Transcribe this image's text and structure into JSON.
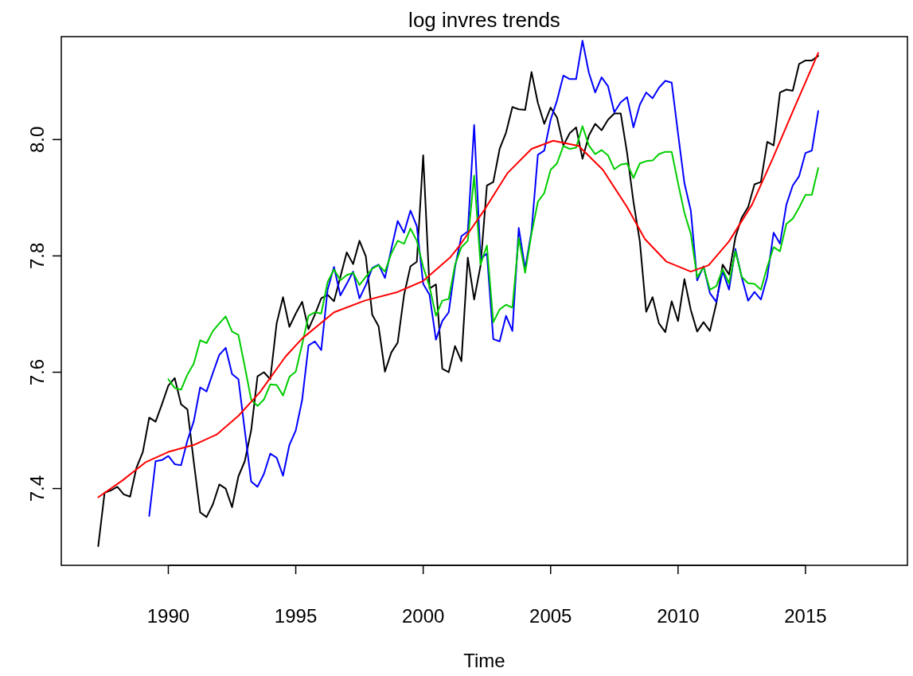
{
  "chart_data": {
    "type": "line",
    "title": "log invres trends",
    "xlabel": "Time",
    "xlim": [
      1985.8,
      2019
    ],
    "xticks": [
      1990,
      1995,
      2000,
      2005,
      2010,
      2015
    ],
    "ylim": [
      7.268,
      8.177
    ],
    "yticks": [
      {
        "value": 7.4,
        "label": "7.4"
      },
      {
        "value": 7.6,
        "label": "7.6"
      },
      {
        "value": 7.8,
        "label": "7.8"
      },
      {
        "value": 8.0,
        "label": "8.0"
      }
    ],
    "x": [
      1987.25,
      1987.5,
      1987.75,
      1988,
      1988.25,
      1988.5,
      1988.75,
      1989,
      1989.25,
      1989.5,
      1989.75,
      1990,
      1990.25,
      1990.5,
      1990.75,
      1991,
      1991.25,
      1991.5,
      1991.75,
      1992,
      1992.25,
      1992.5,
      1992.75,
      1993,
      1993.25,
      1993.5,
      1993.75,
      1994,
      1994.25,
      1994.5,
      1994.75,
      1995,
      1995.25,
      1995.5,
      1995.75,
      1996,
      1996.25,
      1996.5,
      1996.75,
      1997,
      1997.25,
      1997.5,
      1997.75,
      1998,
      1998.25,
      1998.5,
      1998.75,
      1999,
      1999.25,
      1999.5,
      1999.75,
      2000,
      2000.25,
      2000.5,
      2000.75,
      2001,
      2001.25,
      2001.5,
      2001.75,
      2002,
      2002.25,
      2002.5,
      2002.75,
      2003,
      2003.25,
      2003.5,
      2003.75,
      2004,
      2004.25,
      2004.5,
      2004.75,
      2005,
      2005.25,
      2005.5,
      2005.75,
      2006,
      2006.25,
      2006.5,
      2006.75,
      2007,
      2007.25,
      2007.5,
      2007.75,
      2008,
      2008.25,
      2008.5,
      2008.75,
      2009,
      2009.25,
      2009.5,
      2009.75,
      2010,
      2010.25,
      2010.5,
      2010.75,
      2011,
      2011.25,
      2011.5,
      2011.75,
      2012,
      2012.25,
      2012.5,
      2012.75,
      2013,
      2013.25,
      2013.5,
      2013.75,
      2014,
      2014.25,
      2014.5,
      2014.75,
      2015,
      2015.25,
      2015.5
    ],
    "series": [
      {
        "color": "#000000",
        "values": [
          7.301,
          7.393,
          7.397,
          7.403,
          7.39,
          7.386,
          7.436,
          7.463,
          7.522,
          7.515,
          7.545,
          7.577,
          7.59,
          7.545,
          7.536,
          7.445,
          7.359,
          7.351,
          7.373,
          7.407,
          7.4,
          7.368,
          7.421,
          7.447,
          7.5,
          7.593,
          7.6,
          7.588,
          7.684,
          7.729,
          7.678,
          7.701,
          7.721,
          7.674,
          7.699,
          7.727,
          7.733,
          7.722,
          7.764,
          7.806,
          7.786,
          7.826,
          7.799,
          7.699,
          7.679,
          7.601,
          7.634,
          7.651,
          7.733,
          7.782,
          7.79,
          7.973,
          7.744,
          7.751,
          7.606,
          7.6,
          7.645,
          7.619,
          7.797,
          7.725,
          7.783,
          7.921,
          7.927,
          7.984,
          8.012,
          8.056,
          8.052,
          8.051,
          8.116,
          8.063,
          8.027,
          8.055,
          8.038,
          7.99,
          8.011,
          8.021,
          7.967,
          8.007,
          8.027,
          8.016,
          8.034,
          8.045,
          8.045,
          7.977,
          7.893,
          7.825,
          7.704,
          7.729,
          7.684,
          7.669,
          7.722,
          7.688,
          7.76,
          7.707,
          7.67,
          7.686,
          7.671,
          7.718,
          7.785,
          7.768,
          7.832,
          7.866,
          7.884,
          7.923,
          7.927,
          7.996,
          7.99,
          8.081,
          8.086,
          8.084,
          8.13,
          8.136,
          8.136,
          8.144
        ]
      },
      {
        "color": "#0000ff",
        "values": [
          null,
          null,
          null,
          null,
          null,
          null,
          null,
          null,
          7.353,
          7.447,
          7.449,
          7.456,
          7.442,
          7.44,
          7.483,
          7.516,
          7.574,
          7.567,
          7.599,
          7.63,
          7.642,
          7.597,
          7.588,
          7.5,
          7.412,
          7.403,
          7.425,
          7.46,
          7.453,
          7.422,
          7.475,
          7.5,
          7.552,
          7.646,
          7.653,
          7.638,
          7.742,
          7.781,
          7.732,
          7.752,
          7.773,
          7.727,
          7.75,
          7.779,
          7.785,
          7.762,
          7.812,
          7.86,
          7.84,
          7.878,
          7.851,
          7.752,
          7.733,
          7.656,
          7.688,
          7.703,
          7.781,
          7.834,
          7.842,
          8.025,
          7.795,
          7.804,
          7.657,
          7.653,
          7.697,
          7.671,
          7.848,
          7.778,
          7.842,
          7.974,
          7.981,
          8.034,
          8.067,
          8.11,
          8.104,
          8.104,
          8.17,
          8.115,
          8.081,
          8.107,
          8.092,
          8.047,
          8.064,
          8.073,
          8.021,
          8.06,
          8.081,
          8.071,
          8.089,
          8.101,
          8.098,
          8.01,
          7.925,
          7.878,
          7.758,
          7.782,
          7.736,
          7.721,
          7.774,
          7.742,
          7.812,
          7.763,
          7.723,
          7.738,
          7.725,
          7.764,
          7.84,
          7.821,
          7.888,
          7.921,
          7.937,
          7.977,
          7.981,
          8.049
        ]
      },
      {
        "color": "#00cd00",
        "values": [
          null,
          null,
          null,
          null,
          null,
          null,
          null,
          null,
          null,
          null,
          null,
          7.588,
          7.573,
          7.57,
          7.596,
          7.615,
          7.655,
          7.65,
          7.671,
          7.684,
          7.696,
          7.67,
          7.664,
          7.61,
          7.553,
          7.542,
          7.553,
          7.579,
          7.578,
          7.56,
          7.592,
          7.601,
          7.648,
          7.697,
          7.703,
          7.701,
          7.755,
          7.777,
          7.758,
          7.767,
          7.771,
          7.75,
          7.764,
          7.778,
          7.784,
          7.773,
          7.804,
          7.826,
          7.821,
          7.847,
          7.826,
          7.781,
          7.747,
          7.697,
          7.723,
          7.726,
          7.785,
          7.815,
          7.826,
          7.938,
          7.785,
          7.818,
          7.686,
          7.708,
          7.716,
          7.711,
          7.831,
          7.771,
          7.838,
          7.893,
          7.908,
          7.948,
          7.959,
          7.989,
          7.984,
          7.986,
          8.023,
          7.99,
          7.975,
          7.982,
          7.973,
          7.949,
          7.957,
          7.959,
          7.934,
          7.959,
          7.963,
          7.964,
          7.975,
          7.979,
          7.979,
          7.925,
          7.874,
          7.838,
          7.763,
          7.781,
          7.742,
          7.748,
          7.777,
          7.753,
          7.808,
          7.764,
          7.753,
          7.752,
          7.742,
          7.781,
          7.815,
          7.808,
          7.855,
          7.864,
          7.883,
          7.905,
          7.905,
          7.951
        ]
      },
      {
        "color": "#ff0000",
        "x": [
          1987.25,
          1988.2,
          1989.1,
          1990.0,
          1991.0,
          1991.9,
          1992.75,
          1993.6,
          1994.6,
          1995.25,
          1996.5,
          1997.7,
          1999.0,
          2000.0,
          2001.05,
          2001.45,
          2002.4,
          2003.3,
          2004.25,
          2005.1,
          2006.1,
          2007.05,
          2008.0,
          2008.7,
          2009.55,
          2010.5,
          2011.2,
          2012.0,
          2012.9,
          2013.7,
          2014.5,
          2015.5
        ],
        "values": [
          7.385,
          7.414,
          7.445,
          7.463,
          7.475,
          7.493,
          7.525,
          7.566,
          7.627,
          7.658,
          7.703,
          7.723,
          7.738,
          7.757,
          7.797,
          7.819,
          7.879,
          7.942,
          7.984,
          7.998,
          7.989,
          7.948,
          7.884,
          7.829,
          7.79,
          7.773,
          7.784,
          7.825,
          7.888,
          7.966,
          8.048,
          8.149
        ]
      }
    ]
  }
}
